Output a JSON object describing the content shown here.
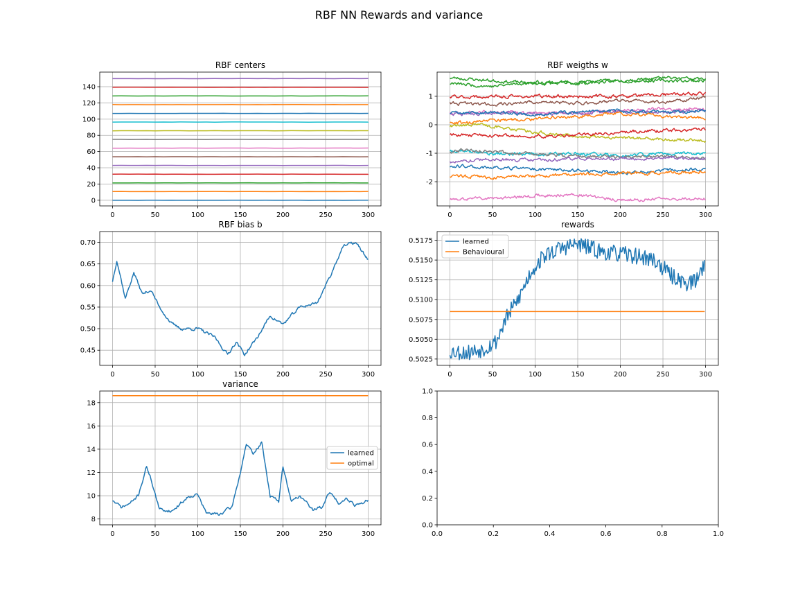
{
  "figure": {
    "title": "RBF NN Rewards and variance"
  },
  "chart_data": [
    {
      "id": "centers",
      "type": "line",
      "title": "RBF centers",
      "xlabel": "",
      "ylabel": "",
      "xlim": [
        -15,
        315
      ],
      "ylim": [
        -7,
        158
      ],
      "xticks": [
        0,
        50,
        100,
        150,
        200,
        250,
        300
      ],
      "yticks": [
        0,
        20,
        40,
        60,
        80,
        100,
        120,
        140
      ],
      "grid": true,
      "gen": {
        "kind": "flat",
        "n": 301,
        "seed": 11
      },
      "series": [
        {
          "color": "#1f77b4",
          "base": 0
        },
        {
          "color": "#ff7f0e",
          "base": 10.7
        },
        {
          "color": "#2ca02c",
          "base": 21.4
        },
        {
          "color": "#d62728",
          "base": 32.1
        },
        {
          "color": "#9467bd",
          "base": 42.9
        },
        {
          "color": "#8c564b",
          "base": 53.6
        },
        {
          "color": "#e377c2",
          "base": 64.3
        },
        {
          "color": "#7f7f7f",
          "base": 75.0
        },
        {
          "color": "#bcbd22",
          "base": 85.7
        },
        {
          "color": "#17becf",
          "base": 96.4
        },
        {
          "color": "#1f77b4",
          "base": 107.1
        },
        {
          "color": "#ff7f0e",
          "base": 117.9
        },
        {
          "color": "#2ca02c",
          "base": 128.6
        },
        {
          "color": "#d62728",
          "base": 139.3
        },
        {
          "color": "#9467bd",
          "base": 150.0
        }
      ]
    },
    {
      "id": "weights",
      "type": "line",
      "title": "RBF weigths w",
      "xlabel": "",
      "ylabel": "",
      "xlim": [
        -15,
        315
      ],
      "ylim": [
        -2.85,
        1.85
      ],
      "xticks": [
        0,
        50,
        100,
        150,
        200,
        250,
        300
      ],
      "yticks": [
        -2,
        -1,
        0,
        1
      ],
      "grid": true,
      "gen": {
        "kind": "walk",
        "n": 301,
        "seed": 23
      },
      "series": [
        {
          "color": "#2ca02c",
          "pts": [
            [
              0,
              1.65
            ],
            [
              50,
              1.55
            ],
            [
              100,
              1.45
            ],
            [
              150,
              1.45
            ],
            [
              200,
              1.55
            ],
            [
              250,
              1.55
            ],
            [
              300,
              1.55
            ]
          ]
        },
        {
          "color": "#2ca02c",
          "pts": [
            [
              0,
              1.45
            ],
            [
              50,
              1.35
            ],
            [
              100,
              1.5
            ],
            [
              150,
              1.5
            ],
            [
              200,
              1.55
            ],
            [
              250,
              1.65
            ],
            [
              300,
              1.6
            ]
          ]
        },
        {
          "color": "#d62728",
          "pts": [
            [
              0,
              0.98
            ],
            [
              50,
              0.98
            ],
            [
              100,
              1.0
            ],
            [
              150,
              1.0
            ],
            [
              200,
              1.0
            ],
            [
              250,
              1.05
            ],
            [
              300,
              1.1
            ]
          ]
        },
        {
          "color": "#8c564b",
          "pts": [
            [
              0,
              0.75
            ],
            [
              50,
              0.72
            ],
            [
              100,
              0.8
            ],
            [
              150,
              0.75
            ],
            [
              200,
              0.85
            ],
            [
              250,
              0.8
            ],
            [
              300,
              0.95
            ]
          ]
        },
        {
          "color": "#e377c2",
          "pts": [
            [
              0,
              0.4
            ],
            [
              50,
              0.45
            ],
            [
              100,
              0.4
            ],
            [
              150,
              0.45
            ],
            [
              200,
              0.5
            ],
            [
              250,
              0.55
            ],
            [
              300,
              0.55
            ]
          ]
        },
        {
          "color": "#9467bd",
          "pts": [
            [
              0,
              0.38
            ],
            [
              50,
              0.4
            ],
            [
              100,
              0.38
            ],
            [
              150,
              0.4
            ],
            [
              200,
              0.45
            ],
            [
              250,
              0.45
            ],
            [
              300,
              0.48
            ]
          ]
        },
        {
          "color": "#1f77b4",
          "pts": [
            [
              0,
              0.4
            ],
            [
              50,
              0.45
            ],
            [
              100,
              0.35
            ],
            [
              150,
              0.45
            ],
            [
              200,
              0.5
            ],
            [
              250,
              0.45
            ],
            [
              300,
              0.5
            ]
          ]
        },
        {
          "color": "#ff7f0e",
          "pts": [
            [
              0,
              0.05
            ],
            [
              50,
              0.15
            ],
            [
              100,
              0.2
            ],
            [
              150,
              0.3
            ],
            [
              200,
              0.4
            ],
            [
              250,
              0.3
            ],
            [
              300,
              0.25
            ]
          ]
        },
        {
          "color": "#bcbd22",
          "pts": [
            [
              0,
              -0.05
            ],
            [
              30,
              0.0
            ],
            [
              60,
              -0.1
            ],
            [
              100,
              -0.25
            ],
            [
              150,
              -0.4
            ],
            [
              200,
              -0.45
            ],
            [
              250,
              -0.5
            ],
            [
              300,
              -0.55
            ]
          ]
        },
        {
          "color": "#d62728",
          "pts": [
            [
              0,
              -0.35
            ],
            [
              50,
              -0.38
            ],
            [
              100,
              -0.4
            ],
            [
              150,
              -0.38
            ],
            [
              200,
              -0.25
            ],
            [
              250,
              -0.2
            ],
            [
              300,
              -0.15
            ]
          ]
        },
        {
          "color": "#17becf",
          "pts": [
            [
              0,
              -0.92
            ],
            [
              50,
              -1.0
            ],
            [
              100,
              -1.05
            ],
            [
              150,
              -1.0
            ],
            [
              200,
              -1.1
            ],
            [
              250,
              -1.0
            ],
            [
              300,
              -1.0
            ]
          ]
        },
        {
          "color": "#7f7f7f",
          "pts": [
            [
              0,
              -0.95
            ],
            [
              20,
              -0.88
            ],
            [
              50,
              -0.95
            ],
            [
              100,
              -1.05
            ],
            [
              150,
              -1.1
            ],
            [
              200,
              -1.15
            ],
            [
              250,
              -1.1
            ],
            [
              300,
              -1.2
            ]
          ]
        },
        {
          "color": "#9467bd",
          "pts": [
            [
              0,
              -1.3
            ],
            [
              50,
              -1.2
            ],
            [
              100,
              -1.25
            ],
            [
              150,
              -1.18
            ],
            [
              200,
              -1.2
            ],
            [
              250,
              -1.15
            ],
            [
              300,
              -1.2
            ]
          ]
        },
        {
          "color": "#1f77b4",
          "pts": [
            [
              0,
              -1.45
            ],
            [
              50,
              -1.5
            ],
            [
              100,
              -1.55
            ],
            [
              150,
              -1.6
            ],
            [
              200,
              -1.7
            ],
            [
              250,
              -1.6
            ],
            [
              300,
              -1.55
            ]
          ]
        },
        {
          "color": "#ff7f0e",
          "pts": [
            [
              0,
              -1.8
            ],
            [
              50,
              -1.85
            ],
            [
              100,
              -1.8
            ],
            [
              150,
              -1.75
            ],
            [
              200,
              -1.7
            ],
            [
              250,
              -1.7
            ],
            [
              300,
              -1.65
            ]
          ]
        },
        {
          "color": "#e377c2",
          "pts": [
            [
              0,
              -2.6
            ],
            [
              50,
              -2.6
            ],
            [
              100,
              -2.5
            ],
            [
              150,
              -2.45
            ],
            [
              200,
              -2.65
            ],
            [
              250,
              -2.6
            ],
            [
              300,
              -2.6
            ]
          ]
        }
      ]
    },
    {
      "id": "bias",
      "type": "line",
      "title": "RBF bias b",
      "xlabel": "",
      "ylabel": "",
      "xlim": [
        -15,
        315
      ],
      "ylim": [
        0.415,
        0.725
      ],
      "xticks": [
        0,
        50,
        100,
        150,
        200,
        250,
        300
      ],
      "yticks": [
        0.45,
        0.5,
        0.55,
        0.6,
        0.65,
        0.7
      ],
      "ytickfmt": 2,
      "grid": true,
      "gen": {
        "kind": "walk",
        "n": 301,
        "seed": 37
      },
      "series": [
        {
          "color": "#1f77b4",
          "pts": [
            [
              0,
              0.61
            ],
            [
              5,
              0.66
            ],
            [
              15,
              0.57
            ],
            [
              25,
              0.63
            ],
            [
              35,
              0.58
            ],
            [
              45,
              0.59
            ],
            [
              55,
              0.55
            ],
            [
              70,
              0.51
            ],
            [
              80,
              0.5
            ],
            [
              100,
              0.5
            ],
            [
              120,
              0.48
            ],
            [
              135,
              0.44
            ],
            [
              145,
              0.47
            ],
            [
              155,
              0.44
            ],
            [
              170,
              0.48
            ],
            [
              185,
              0.53
            ],
            [
              200,
              0.51
            ],
            [
              220,
              0.55
            ],
            [
              240,
              0.56
            ],
            [
              255,
              0.62
            ],
            [
              270,
              0.69
            ],
            [
              285,
              0.7
            ],
            [
              300,
              0.66
            ]
          ]
        }
      ]
    },
    {
      "id": "rewards",
      "type": "line",
      "title": "rewards",
      "xlabel": "",
      "ylabel": "",
      "xlim": [
        -15,
        315
      ],
      "ylim": [
        0.5017,
        0.5186
      ],
      "xticks": [
        0,
        50,
        100,
        150,
        200,
        250,
        300
      ],
      "yticks": [
        0.5025,
        0.505,
        0.5075,
        0.51,
        0.5125,
        0.515,
        0.5175
      ],
      "ytickfmt": 4,
      "grid": true,
      "legend": {
        "position": "upper-left"
      },
      "gen": {
        "kind": "noisy",
        "n": 300,
        "seed": 53
      },
      "series": [
        {
          "name": "learned",
          "color": "#1f77b4",
          "noise": 0.0013,
          "pts": [
            [
              0,
              0.5035
            ],
            [
              20,
              0.5033
            ],
            [
              40,
              0.5038
            ],
            [
              55,
              0.5048
            ],
            [
              65,
              0.5075
            ],
            [
              80,
              0.51
            ],
            [
              95,
              0.5135
            ],
            [
              110,
              0.5155
            ],
            [
              130,
              0.5165
            ],
            [
              150,
              0.517
            ],
            [
              180,
              0.516
            ],
            [
              220,
              0.5155
            ],
            [
              240,
              0.515
            ],
            [
              260,
              0.513
            ],
            [
              280,
              0.512
            ],
            [
              290,
              0.5125
            ],
            [
              300,
              0.515
            ]
          ]
        },
        {
          "name": "Behavioural",
          "color": "#ff7f0e",
          "flat": 0.5085
        }
      ]
    },
    {
      "id": "variance",
      "type": "line",
      "title": "variance",
      "xlabel": "",
      "ylabel": "",
      "xlim": [
        -15,
        315
      ],
      "ylim": [
        7.5,
        19.0
      ],
      "xticks": [
        0,
        50,
        100,
        150,
        200,
        250,
        300
      ],
      "yticks": [
        8,
        10,
        12,
        14,
        16,
        18
      ],
      "grid": true,
      "legend": {
        "position": "center-right"
      },
      "gen": {
        "kind": "walk",
        "n": 301,
        "seed": 71
      },
      "series": [
        {
          "name": "learned",
          "color": "#1f77b4",
          "pts": [
            [
              0,
              9.6
            ],
            [
              10,
              9.0
            ],
            [
              20,
              9.3
            ],
            [
              30,
              10.0
            ],
            [
              40,
              12.5
            ],
            [
              45,
              11.5
            ],
            [
              55,
              8.8
            ],
            [
              70,
              8.7
            ],
            [
              90,
              10.0
            ],
            [
              100,
              10.1
            ],
            [
              110,
              8.5
            ],
            [
              125,
              8.4
            ],
            [
              140,
              9.0
            ],
            [
              150,
              12.0
            ],
            [
              157,
              14.5
            ],
            [
              165,
              13.5
            ],
            [
              175,
              14.6
            ],
            [
              185,
              10.0
            ],
            [
              195,
              9.5
            ],
            [
              200,
              12.5
            ],
            [
              210,
              9.5
            ],
            [
              220,
              10.0
            ],
            [
              235,
              8.8
            ],
            [
              245,
              9.0
            ],
            [
              255,
              10.3
            ],
            [
              265,
              9.4
            ],
            [
              275,
              9.8
            ],
            [
              285,
              9.2
            ],
            [
              300,
              9.6
            ]
          ]
        },
        {
          "name": "optimal",
          "color": "#ff7f0e",
          "flat": 18.6
        }
      ]
    },
    {
      "id": "empty",
      "type": "line",
      "title": "",
      "xlabel": "",
      "ylabel": "",
      "xlim": [
        0,
        1
      ],
      "ylim": [
        0,
        1
      ],
      "xticks": [
        0.0,
        0.2,
        0.4,
        0.6,
        0.8,
        1.0
      ],
      "yticks": [
        0.0,
        0.2,
        0.4,
        0.6,
        0.8,
        1.0
      ],
      "xtickfmt": 1,
      "ytickfmt": 1,
      "grid": false,
      "series": []
    }
  ]
}
